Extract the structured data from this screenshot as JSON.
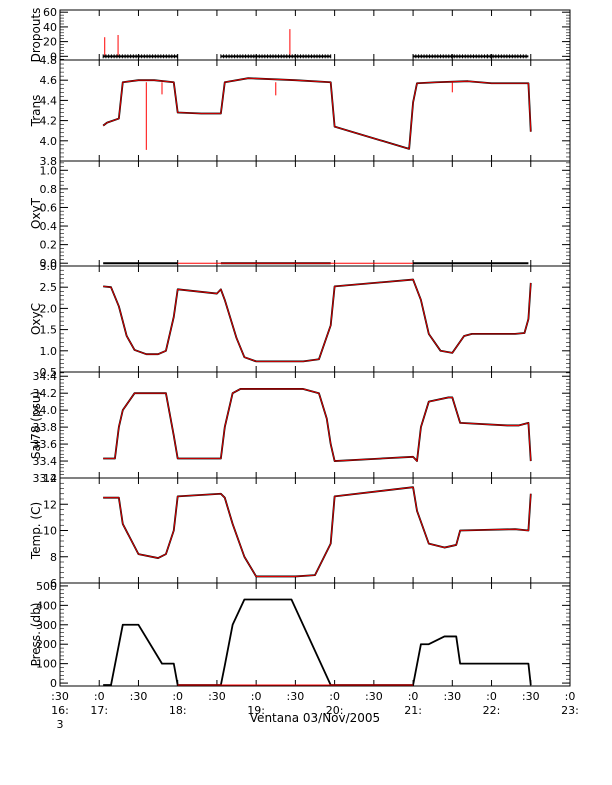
{
  "chart_data": [
    {
      "type": "line",
      "ylabel": "Dropouts",
      "yticks": [
        "60",
        "40",
        "20",
        "0"
      ],
      "ylim": [
        -5,
        63
      ],
      "series": [
        {
          "color": "#ff0000",
          "style": "spikes",
          "x": [
            17.07,
            17.24,
            18.75,
            19.43
          ],
          "values": [
            26,
            29,
            0,
            37
          ]
        },
        {
          "color": "#000000",
          "style": "markers",
          "segments": [
            [
              17.05,
              18.0,
              0
            ],
            [
              18.55,
              19.95,
              0
            ],
            [
              21.0,
              21.95,
              0
            ],
            [
              21.95,
              22.47,
              0
            ]
          ]
        }
      ]
    },
    {
      "type": "line",
      "ylabel": "Trans",
      "yticks": [
        "4.8",
        "4.6",
        "4.4",
        "4.2",
        "4.0",
        "3.8"
      ],
      "ylim": [
        3.8,
        4.8
      ],
      "series": [
        {
          "color": "#000000",
          "x": [
            17.05,
            17.1,
            17.25,
            17.3,
            17.5,
            17.7,
            17.95,
            18.0,
            18.3,
            18.55,
            18.6,
            18.9,
            19.5,
            19.95,
            20.0,
            20.95,
            21.0,
            21.05,
            21.3,
            21.7,
            22.0,
            22.3,
            22.47,
            22.5
          ],
          "values": [
            4.15,
            4.18,
            4.22,
            4.58,
            4.6,
            4.6,
            4.58,
            4.28,
            4.27,
            4.27,
            4.58,
            4.62,
            4.6,
            4.58,
            4.14,
            3.92,
            4.38,
            4.57,
            4.58,
            4.59,
            4.57,
            4.57,
            4.57,
            4.09
          ]
        },
        {
          "color": "#ff0000",
          "style": "spikes",
          "x": [
            17.6,
            17.8,
            19.25,
            21.5
          ],
          "values": [
            3.91,
            4.46,
            4.45,
            4.48
          ]
        }
      ]
    },
    {
      "type": "line",
      "ylabel": "OxyT",
      "yticks": [
        "1.0",
        "0.8",
        "0.6",
        "0.4",
        "0.2",
        "0.0"
      ],
      "ylim": [
        -0.03,
        1.1
      ],
      "series": [
        {
          "color": "#000000",
          "segments": [
            [
              17.05,
              18.0,
              0
            ],
            [
              18.55,
              19.95,
              0
            ],
            [
              21.0,
              22.47,
              0
            ]
          ]
        },
        {
          "color": "#ff0000",
          "x": [
            18.0,
            18.55,
            19.95,
            21.0
          ],
          "values": [
            0,
            0,
            0,
            0
          ]
        }
      ]
    },
    {
      "type": "line",
      "ylabel": "OxyC",
      "yticks": [
        "3.0",
        "2.5",
        "2.0",
        "1.5",
        "1.0",
        "0.5"
      ],
      "ylim": [
        0.5,
        3.0
      ],
      "series": [
        {
          "color": "#000000",
          "x": [
            17.05,
            17.15,
            17.25,
            17.35,
            17.45,
            17.6,
            17.75,
            17.85,
            17.95,
            18.0,
            18.5,
            18.55,
            18.6,
            18.75,
            18.85,
            19.0,
            19.3,
            19.6,
            19.8,
            19.95,
            20.0,
            21.0,
            21.1,
            21.2,
            21.35,
            21.5,
            21.65,
            21.75,
            21.95,
            22.3,
            22.42,
            22.47,
            22.5
          ],
          "values": [
            2.52,
            2.5,
            2.05,
            1.35,
            1.02,
            0.92,
            0.92,
            1.0,
            1.8,
            2.45,
            2.35,
            2.45,
            2.2,
            1.3,
            0.85,
            0.75,
            0.75,
            0.75,
            0.8,
            1.6,
            2.52,
            2.68,
            2.2,
            1.4,
            1.0,
            0.95,
            1.35,
            1.4,
            1.4,
            1.4,
            1.42,
            1.75,
            2.6
          ]
        }
      ]
    },
    {
      "type": "line",
      "ylabel": "Sal78 (psu)",
      "yticks": [
        "34.4",
        "34.2",
        "34.0",
        "33.8",
        "33.6",
        "33.4",
        "33.2"
      ],
      "ylim": [
        33.2,
        34.45
      ],
      "series": [
        {
          "color": "#000000",
          "x": [
            17.05,
            17.2,
            17.25,
            17.3,
            17.45,
            17.7,
            17.85,
            17.95,
            18.0,
            18.55,
            18.6,
            18.7,
            18.8,
            19.0,
            19.6,
            19.8,
            19.9,
            19.95,
            20.0,
            21.0,
            21.05,
            21.1,
            21.2,
            21.45,
            21.5,
            21.6,
            22.2,
            22.35,
            22.47,
            22.5
          ],
          "values": [
            33.43,
            33.43,
            33.8,
            34.0,
            34.2,
            34.2,
            34.2,
            33.7,
            33.43,
            33.43,
            33.8,
            34.2,
            34.25,
            34.25,
            34.25,
            34.2,
            33.9,
            33.6,
            33.4,
            33.45,
            33.4,
            33.8,
            34.1,
            34.15,
            34.15,
            33.85,
            33.82,
            33.82,
            33.85,
            33.4
          ]
        }
      ]
    },
    {
      "type": "line",
      "ylabel": "Temp. (C)",
      "yticks": [
        "14",
        "12",
        "10",
        "8",
        "6"
      ],
      "ylim": [
        6,
        14
      ],
      "series": [
        {
          "color": "#000000",
          "x": [
            17.05,
            17.25,
            17.3,
            17.5,
            17.75,
            17.85,
            17.95,
            18.0,
            18.55,
            18.6,
            18.7,
            18.85,
            19.0,
            19.5,
            19.75,
            19.95,
            20.0,
            21.0,
            21.05,
            21.2,
            21.4,
            21.55,
            21.6,
            22.3,
            22.47,
            22.5
          ],
          "values": [
            12.5,
            12.5,
            10.5,
            8.2,
            7.9,
            8.2,
            10.0,
            12.6,
            12.8,
            12.5,
            10.5,
            8.0,
            6.5,
            6.5,
            6.6,
            9.0,
            12.6,
            13.3,
            11.5,
            9.0,
            8.7,
            8.9,
            10.0,
            10.1,
            10.0,
            12.8
          ]
        }
      ]
    },
    {
      "type": "line",
      "ylabel": "Press. (db)",
      "yticks": [
        "500",
        "400",
        "300",
        "200",
        "100",
        "0"
      ],
      "ylim": [
        -15,
        515
      ],
      "series": [
        {
          "color": "#000000",
          "x": [
            17.05,
            17.15,
            17.3,
            17.5,
            17.8,
            17.95,
            18.0,
            18.55,
            18.6,
            18.7,
            18.85,
            19.0,
            19.45,
            19.95,
            20.0,
            21.0,
            21.1,
            21.2,
            21.4,
            21.55,
            21.6,
            21.7,
            22.47,
            22.5
          ],
          "values": [
            -10,
            -10,
            300,
            300,
            100,
            100,
            -10,
            -10,
            90,
            300,
            430,
            430,
            430,
            -10,
            -10,
            -10,
            200,
            200,
            240,
            240,
            100,
            100,
            100,
            -10
          ]
        },
        {
          "color": "#ff0000",
          "x": [
            18.0,
            18.55,
            20.0,
            21.0
          ],
          "values": [
            -10,
            -10,
            -10,
            -10
          ]
        }
      ]
    }
  ],
  "x_axis": {
    "xlim": [
      16.5,
      23.0
    ],
    "ticks": [
      {
        "x": 16.5,
        "label": ":30",
        "label2": "16:",
        "label3": "3"
      },
      {
        "x": 17.0,
        "label": ":0",
        "label2": "17:"
      },
      {
        "x": 17.5,
        "label": ":30"
      },
      {
        "x": 18.0,
        "label": ":0",
        "label2": "18:"
      },
      {
        "x": 18.5,
        "label": ":30"
      },
      {
        "x": 19.0,
        "label": ":0",
        "label2": "19:"
      },
      {
        "x": 19.5,
        "label": ":30"
      },
      {
        "x": 20.0,
        "label": ":0",
        "label2": "20:"
      },
      {
        "x": 20.5,
        "label": ":30"
      },
      {
        "x": 21.0,
        "label": ":0",
        "label2": "21:"
      },
      {
        "x": 21.5,
        "label": ":30"
      },
      {
        "x": 22.0,
        "label": ":0",
        "label2": "22:"
      },
      {
        "x": 22.5,
        "label": ":30"
      },
      {
        "x": 23.0,
        "label": ":0",
        "label2": "23:"
      }
    ],
    "caption": "Ventana 03/Nov/2005"
  }
}
